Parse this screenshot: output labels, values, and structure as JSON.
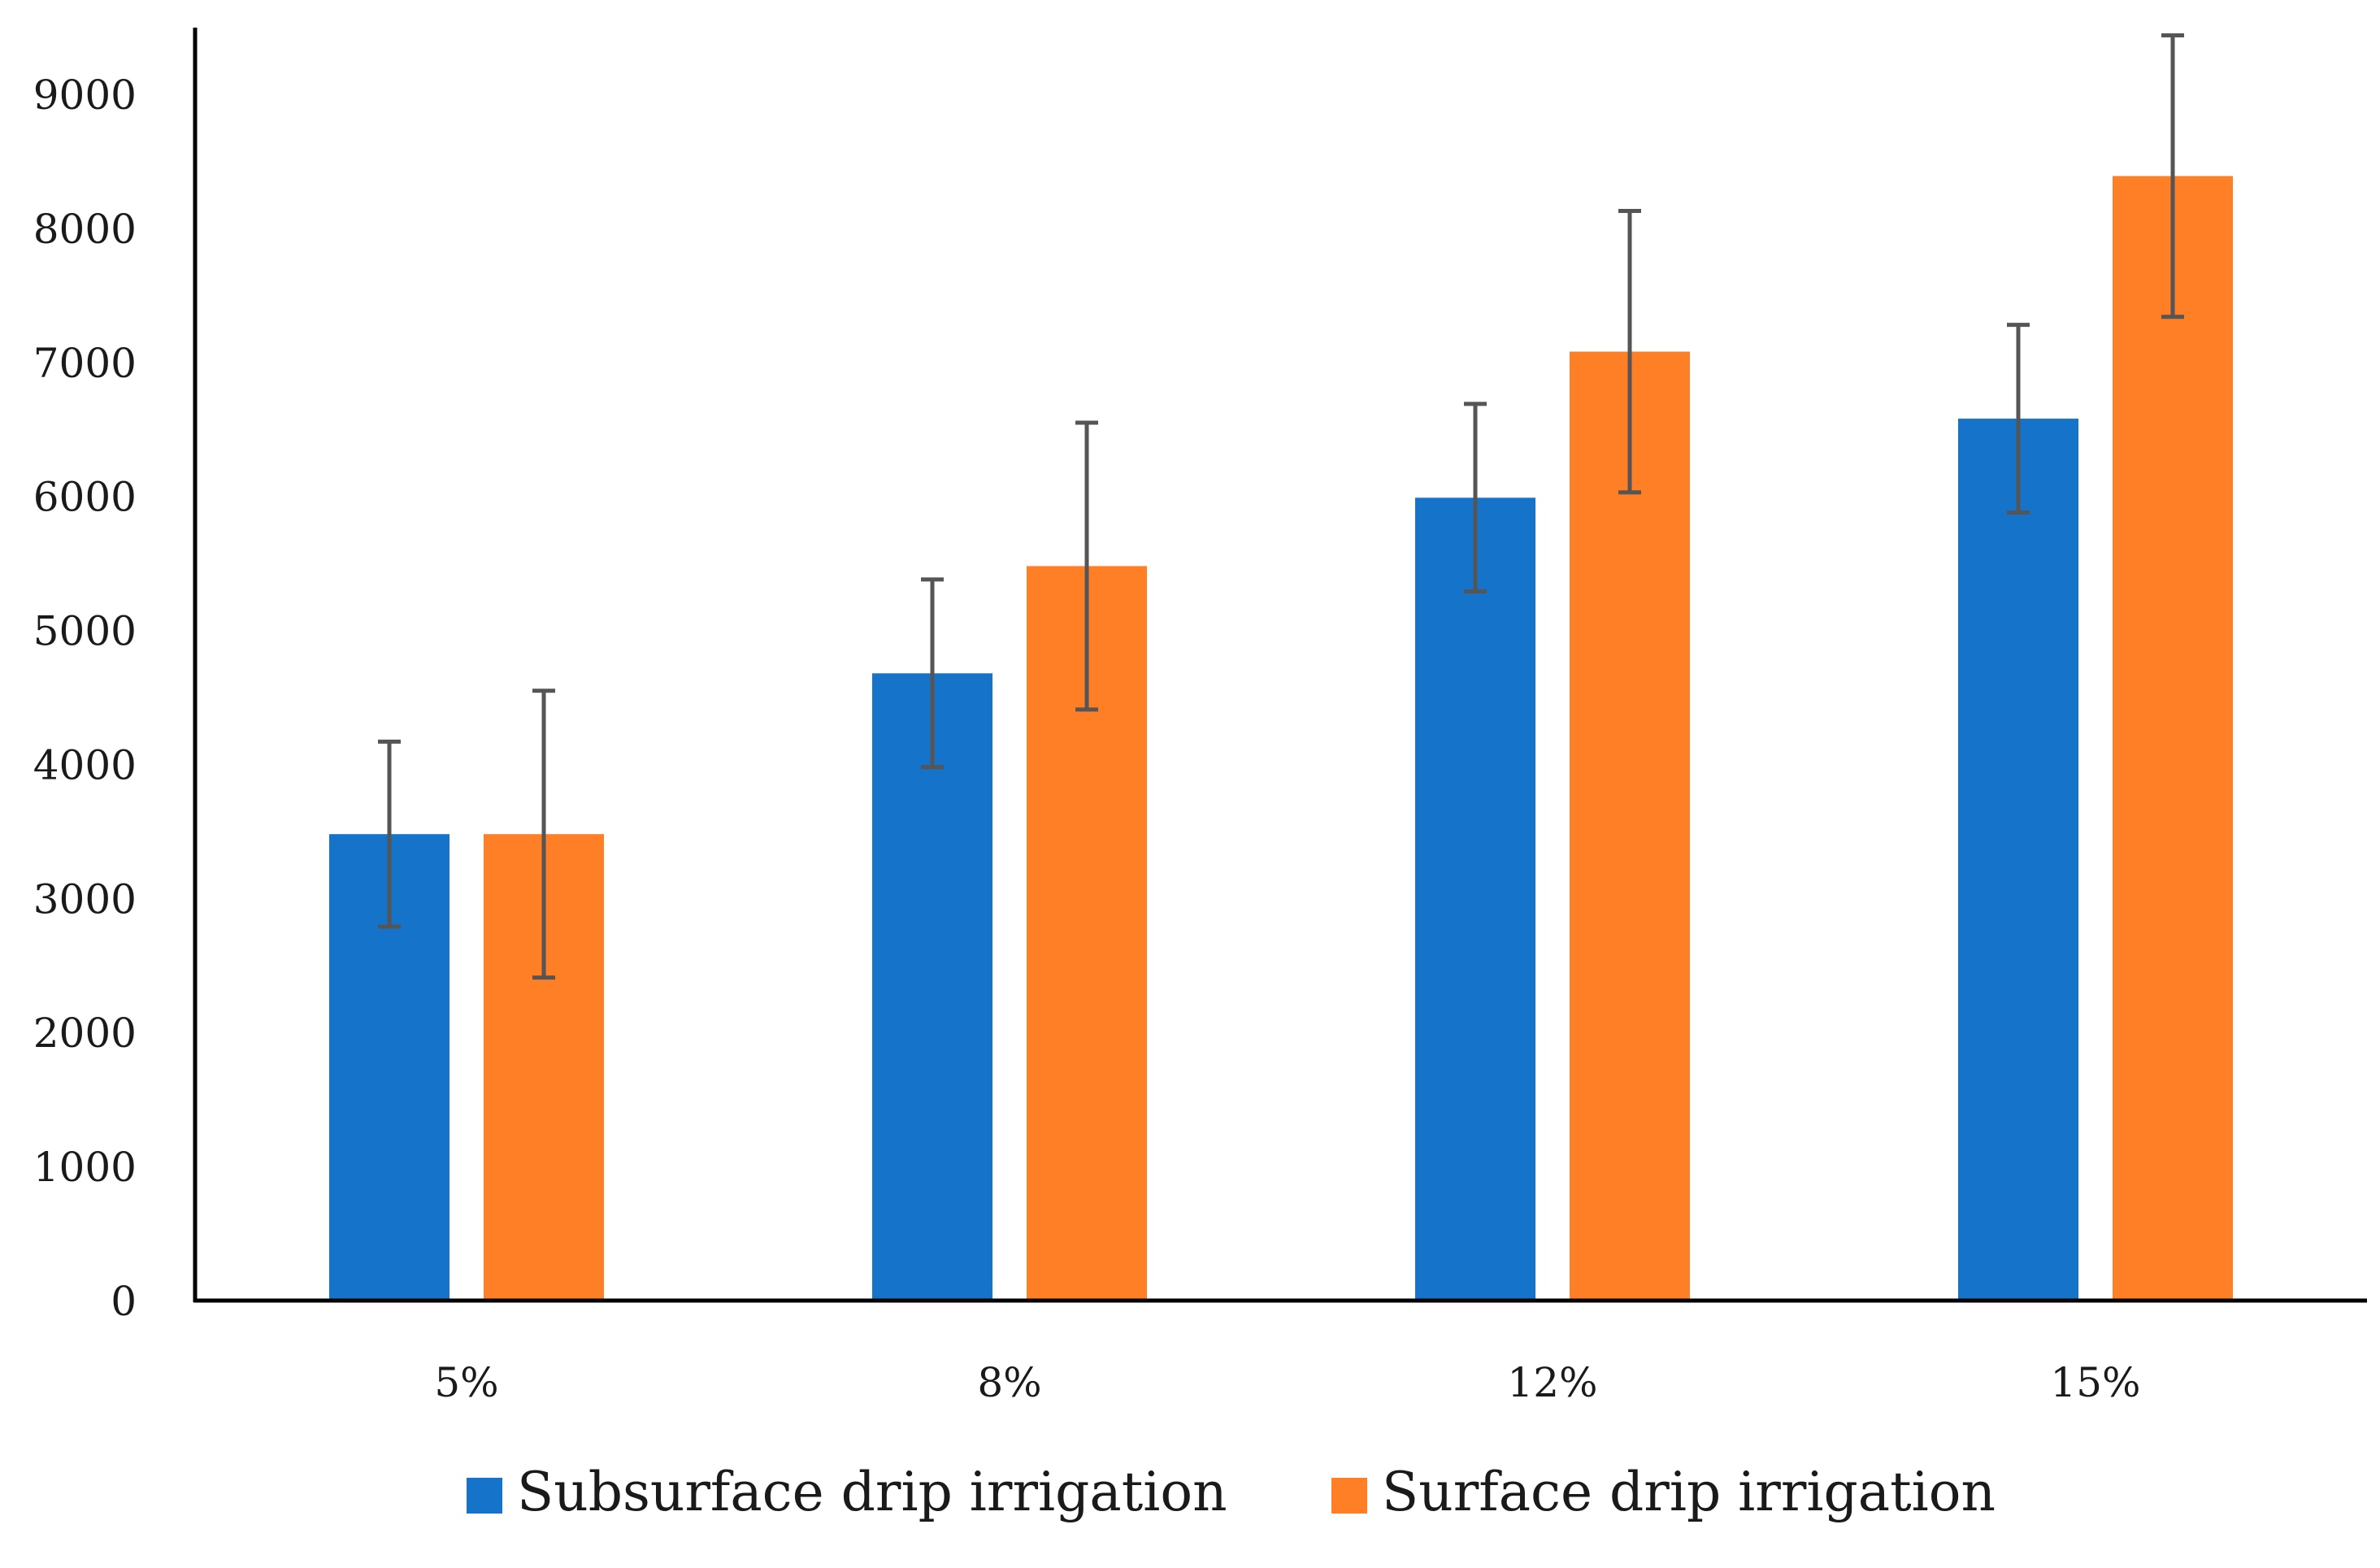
{
  "chart_data": {
    "type": "bar",
    "title": "",
    "xlabel": "",
    "ylabel": "",
    "categories": [
      "5%",
      "8%",
      "12%",
      "15%"
    ],
    "ylim": [
      0,
      9500
    ],
    "yticks": [
      0,
      1000,
      2000,
      3000,
      4000,
      5000,
      6000,
      7000,
      8000,
      9000
    ],
    "grid": false,
    "legend_position": "bottom",
    "series": [
      {
        "name": "Subsurface drip irrigation",
        "color": "#1673CA",
        "values": [
          3480,
          4680,
          5990,
          6580
        ],
        "error": [
          690,
          700,
          700,
          700
        ]
      },
      {
        "name": "Surface drip irrigation",
        "color": "#FF7F27",
        "values": [
          3480,
          5480,
          7080,
          8390
        ],
        "error": [
          1070,
          1070,
          1050,
          1050
        ]
      }
    ],
    "errorbar_color": "#555555"
  }
}
